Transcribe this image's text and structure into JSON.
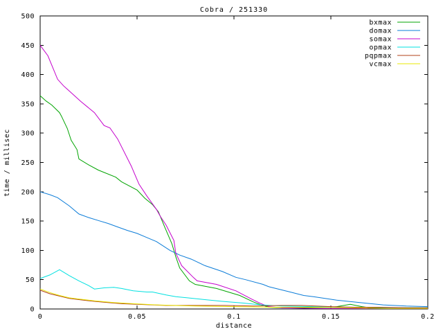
{
  "window": {
    "background": "#ffffff",
    "text_color": "#000000"
  },
  "chart_data": {
    "type": "line",
    "title": "Cobra / 251330",
    "xlabel": "distance",
    "ylabel": "time / millisec",
    "xlim": [
      0,
      0.2
    ],
    "ylim": [
      0,
      500
    ],
    "grid": false,
    "legend_position": "top-right",
    "axis_color": "#000000",
    "xticks": {
      "values": [
        0,
        0.05,
        0.1,
        0.15,
        0.2
      ],
      "labels": [
        "0",
        "0.05",
        "0.1",
        "0.15",
        "0.2"
      ]
    },
    "yticks": {
      "values": [
        0,
        50,
        100,
        150,
        200,
        250,
        300,
        350,
        400,
        450,
        500
      ],
      "labels": [
        "0",
        "50",
        "100",
        "150",
        "200",
        "250",
        "300",
        "350",
        "400",
        "450",
        "500"
      ]
    },
    "series": [
      {
        "name": "bxmax",
        "color": "#00a400",
        "points": [
          [
            0,
            364
          ],
          [
            0.003,
            355
          ],
          [
            0.006,
            348
          ],
          [
            0.01,
            335
          ],
          [
            0.011,
            329
          ],
          [
            0.014,
            308
          ],
          [
            0.016,
            288
          ],
          [
            0.019,
            272
          ],
          [
            0.02,
            256
          ],
          [
            0.025,
            246
          ],
          [
            0.03,
            237
          ],
          [
            0.039,
            225
          ],
          [
            0.042,
            217
          ],
          [
            0.05,
            203
          ],
          [
            0.054,
            189
          ],
          [
            0.058,
            178
          ],
          [
            0.061,
            166
          ],
          [
            0.064,
            142
          ],
          [
            0.068,
            111
          ],
          [
            0.07,
            89
          ],
          [
            0.072,
            70
          ],
          [
            0.077,
            48
          ],
          [
            0.08,
            42
          ],
          [
            0.091,
            35
          ],
          [
            0.103,
            23
          ],
          [
            0.11,
            12
          ],
          [
            0.114,
            7
          ],
          [
            0.118,
            3
          ],
          [
            0.125,
            2
          ],
          [
            0.14,
            2
          ],
          [
            0.15,
            3
          ],
          [
            0.153,
            4
          ],
          [
            0.16,
            8
          ],
          [
            0.166,
            4
          ],
          [
            0.17,
            2
          ],
          [
            0.18,
            2
          ],
          [
            0.2,
            2
          ]
        ]
      },
      {
        "name": "domax",
        "color": "#0b7cd8",
        "points": [
          [
            0,
            200
          ],
          [
            0.005,
            195
          ],
          [
            0.009,
            190
          ],
          [
            0.015,
            176
          ],
          [
            0.02,
            162
          ],
          [
            0.025,
            156
          ],
          [
            0.03,
            151
          ],
          [
            0.035,
            146
          ],
          [
            0.04,
            140
          ],
          [
            0.045,
            134
          ],
          [
            0.05,
            129
          ],
          [
            0.055,
            122
          ],
          [
            0.06,
            115
          ],
          [
            0.067,
            100
          ],
          [
            0.072,
            92
          ],
          [
            0.078,
            85
          ],
          [
            0.085,
            74
          ],
          [
            0.094,
            64
          ],
          [
            0.101,
            54
          ],
          [
            0.106,
            50
          ],
          [
            0.115,
            42
          ],
          [
            0.118,
            38
          ],
          [
            0.129,
            29
          ],
          [
            0.136,
            23
          ],
          [
            0.141,
            21
          ],
          [
            0.153,
            15
          ],
          [
            0.165,
            11
          ],
          [
            0.177,
            7
          ],
          [
            0.189,
            5
          ],
          [
            0.2,
            4
          ]
        ]
      },
      {
        "name": "somax",
        "color": "#c400cc",
        "points": [
          [
            0,
            450
          ],
          [
            0.004,
            432
          ],
          [
            0.009,
            392
          ],
          [
            0.012,
            381
          ],
          [
            0.015,
            372
          ],
          [
            0.021,
            354
          ],
          [
            0.028,
            335
          ],
          [
            0.033,
            313
          ],
          [
            0.036,
            309
          ],
          [
            0.04,
            290
          ],
          [
            0.047,
            244
          ],
          [
            0.051,
            213
          ],
          [
            0.055,
            193
          ],
          [
            0.06,
            170
          ],
          [
            0.062,
            158
          ],
          [
            0.065,
            143
          ],
          [
            0.069,
            117
          ],
          [
            0.07,
            95
          ],
          [
            0.073,
            74
          ],
          [
            0.079,
            54
          ],
          [
            0.081,
            48
          ],
          [
            0.091,
            42
          ],
          [
            0.101,
            31
          ],
          [
            0.109,
            17
          ],
          [
            0.114,
            9
          ],
          [
            0.118,
            4
          ],
          [
            0.125,
            2
          ],
          [
            0.14,
            1
          ],
          [
            0.16,
            1
          ],
          [
            0.18,
            1
          ],
          [
            0.2,
            1
          ]
        ]
      },
      {
        "name": "opmax",
        "color": "#00e0e0",
        "points": [
          [
            0,
            52
          ],
          [
            0.005,
            58
          ],
          [
            0.01,
            67
          ],
          [
            0.015,
            57
          ],
          [
            0.02,
            48
          ],
          [
            0.025,
            40
          ],
          [
            0.028,
            34
          ],
          [
            0.033,
            36
          ],
          [
            0.038,
            37
          ],
          [
            0.042,
            35
          ],
          [
            0.048,
            31
          ],
          [
            0.055,
            29
          ],
          [
            0.058,
            29
          ],
          [
            0.065,
            24
          ],
          [
            0.07,
            21
          ],
          [
            0.076,
            19
          ],
          [
            0.085,
            16
          ],
          [
            0.094,
            13
          ],
          [
            0.105,
            10
          ],
          [
            0.114,
            7
          ],
          [
            0.125,
            5
          ],
          [
            0.14,
            4
          ],
          [
            0.155,
            3
          ],
          [
            0.17,
            3
          ],
          [
            0.185,
            2
          ],
          [
            0.2,
            2
          ]
        ]
      },
      {
        "name": "pqpmax",
        "color": "#b04018",
        "points": [
          [
            0,
            32
          ],
          [
            0.005,
            26
          ],
          [
            0.01,
            22
          ],
          [
            0.015,
            18
          ],
          [
            0.02,
            16
          ],
          [
            0.028,
            13
          ],
          [
            0.035,
            11
          ],
          [
            0.042,
            9
          ],
          [
            0.05,
            8
          ],
          [
            0.058,
            7
          ],
          [
            0.065,
            6
          ],
          [
            0.08,
            6
          ],
          [
            0.095,
            6
          ],
          [
            0.11,
            5
          ],
          [
            0.125,
            6
          ],
          [
            0.135,
            6
          ],
          [
            0.15,
            4
          ],
          [
            0.163,
            3
          ],
          [
            0.175,
            3
          ],
          [
            0.19,
            2
          ],
          [
            0.2,
            2
          ]
        ]
      },
      {
        "name": "vcmax",
        "color": "#e8e800",
        "points": [
          [
            0,
            34
          ],
          [
            0.005,
            28
          ],
          [
            0.01,
            23
          ],
          [
            0.015,
            19
          ],
          [
            0.02,
            17
          ],
          [
            0.028,
            14
          ],
          [
            0.038,
            11
          ],
          [
            0.048,
            9
          ],
          [
            0.06,
            7
          ],
          [
            0.08,
            5
          ],
          [
            0.1,
            4
          ],
          [
            0.12,
            3
          ],
          [
            0.14,
            3
          ],
          [
            0.16,
            2
          ],
          [
            0.18,
            1
          ],
          [
            0.2,
            1
          ]
        ]
      }
    ]
  }
}
